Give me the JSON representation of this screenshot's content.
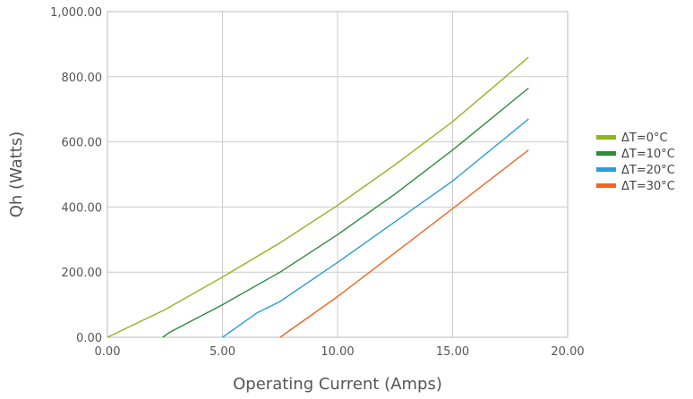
{
  "chart_data": {
    "type": "line",
    "title": "",
    "xlabel": "Operating Current (Amps)",
    "ylabel": "Qh (Watts)",
    "xlim": [
      0,
      20
    ],
    "ylim": [
      0,
      1000
    ],
    "xticks": [
      "0.00",
      "5.00",
      "10.00",
      "15.00",
      "20.00"
    ],
    "yticks": [
      "0.00",
      "200.00",
      "400.00",
      "600.00",
      "800.00",
      "1,000.00"
    ],
    "grid": true,
    "legend_position": "right",
    "series": [
      {
        "name": "ΔT=0°C",
        "color": "#8db51d",
        "points": [
          [
            0,
            0
          ],
          [
            2.5,
            85
          ],
          [
            5,
            185
          ],
          [
            7.5,
            290
          ],
          [
            10,
            405
          ],
          [
            12.5,
            530
          ],
          [
            15,
            662
          ],
          [
            18.3,
            860
          ]
        ]
      },
      {
        "name": "ΔT=10°C",
        "color": "#2e8b3c",
        "points": [
          [
            2.4,
            0
          ],
          [
            2.7,
            15
          ],
          [
            5,
            100
          ],
          [
            7.5,
            200
          ],
          [
            10,
            315
          ],
          [
            12.5,
            440
          ],
          [
            15,
            575
          ],
          [
            18.3,
            765
          ]
        ]
      },
      {
        "name": "ΔT=20°C",
        "color": "#2a9fd6",
        "points": [
          [
            5,
            0
          ],
          [
            6.5,
            75
          ],
          [
            7.5,
            110
          ],
          [
            10,
            230
          ],
          [
            12.5,
            355
          ],
          [
            15,
            480
          ],
          [
            18.3,
            670
          ]
        ]
      },
      {
        "name": "ΔT=30°C",
        "color": "#f26522",
        "points": [
          [
            7.5,
            0
          ],
          [
            10,
            125
          ],
          [
            12.5,
            260
          ],
          [
            15,
            395
          ],
          [
            18.3,
            575
          ]
        ]
      }
    ]
  }
}
